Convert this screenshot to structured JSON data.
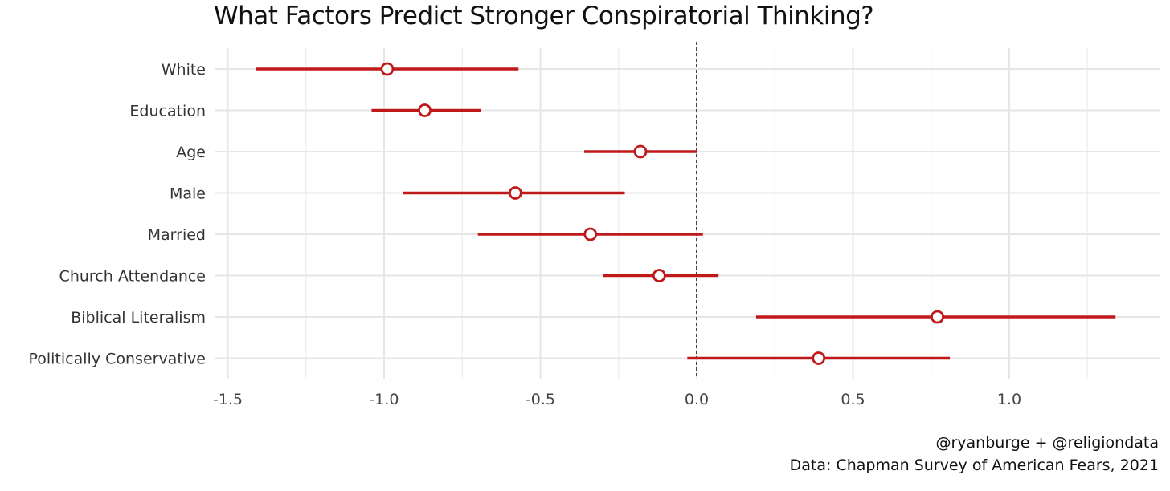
{
  "chart_data": {
    "type": "scatter",
    "title": "What Factors Predict Stronger Conspiratorial Thinking?",
    "xlim": [
      -1.55,
      1.49
    ],
    "x_ticks": [
      -1.5,
      -1.0,
      -0.5,
      0.0,
      0.5,
      1.0
    ],
    "x_tick_labels": [
      "-1.5",
      "-1.0",
      "-0.5",
      "0.0",
      "0.5",
      "1.0"
    ],
    "reference_line": 0.0,
    "grid": true,
    "color": "#c0191a",
    "categories": [
      "White",
      "Education",
      "Age",
      "Male",
      "Married",
      "Church Attendance",
      "Biblical Literalism",
      "Politically Conservative"
    ],
    "estimates": [
      -0.99,
      -0.87,
      -0.18,
      -0.58,
      -0.34,
      -0.12,
      0.77,
      0.39
    ],
    "lower": [
      -1.41,
      -1.04,
      -0.36,
      -0.94,
      -0.7,
      -0.3,
      0.19,
      -0.03
    ],
    "upper": [
      -0.57,
      -0.69,
      0.0,
      -0.23,
      0.02,
      0.07,
      1.34,
      0.81
    ]
  },
  "caption": {
    "line1": "@ryanburge + @religiondata",
    "line2": "Data: Chapman Survey of American Fears, 2021"
  }
}
